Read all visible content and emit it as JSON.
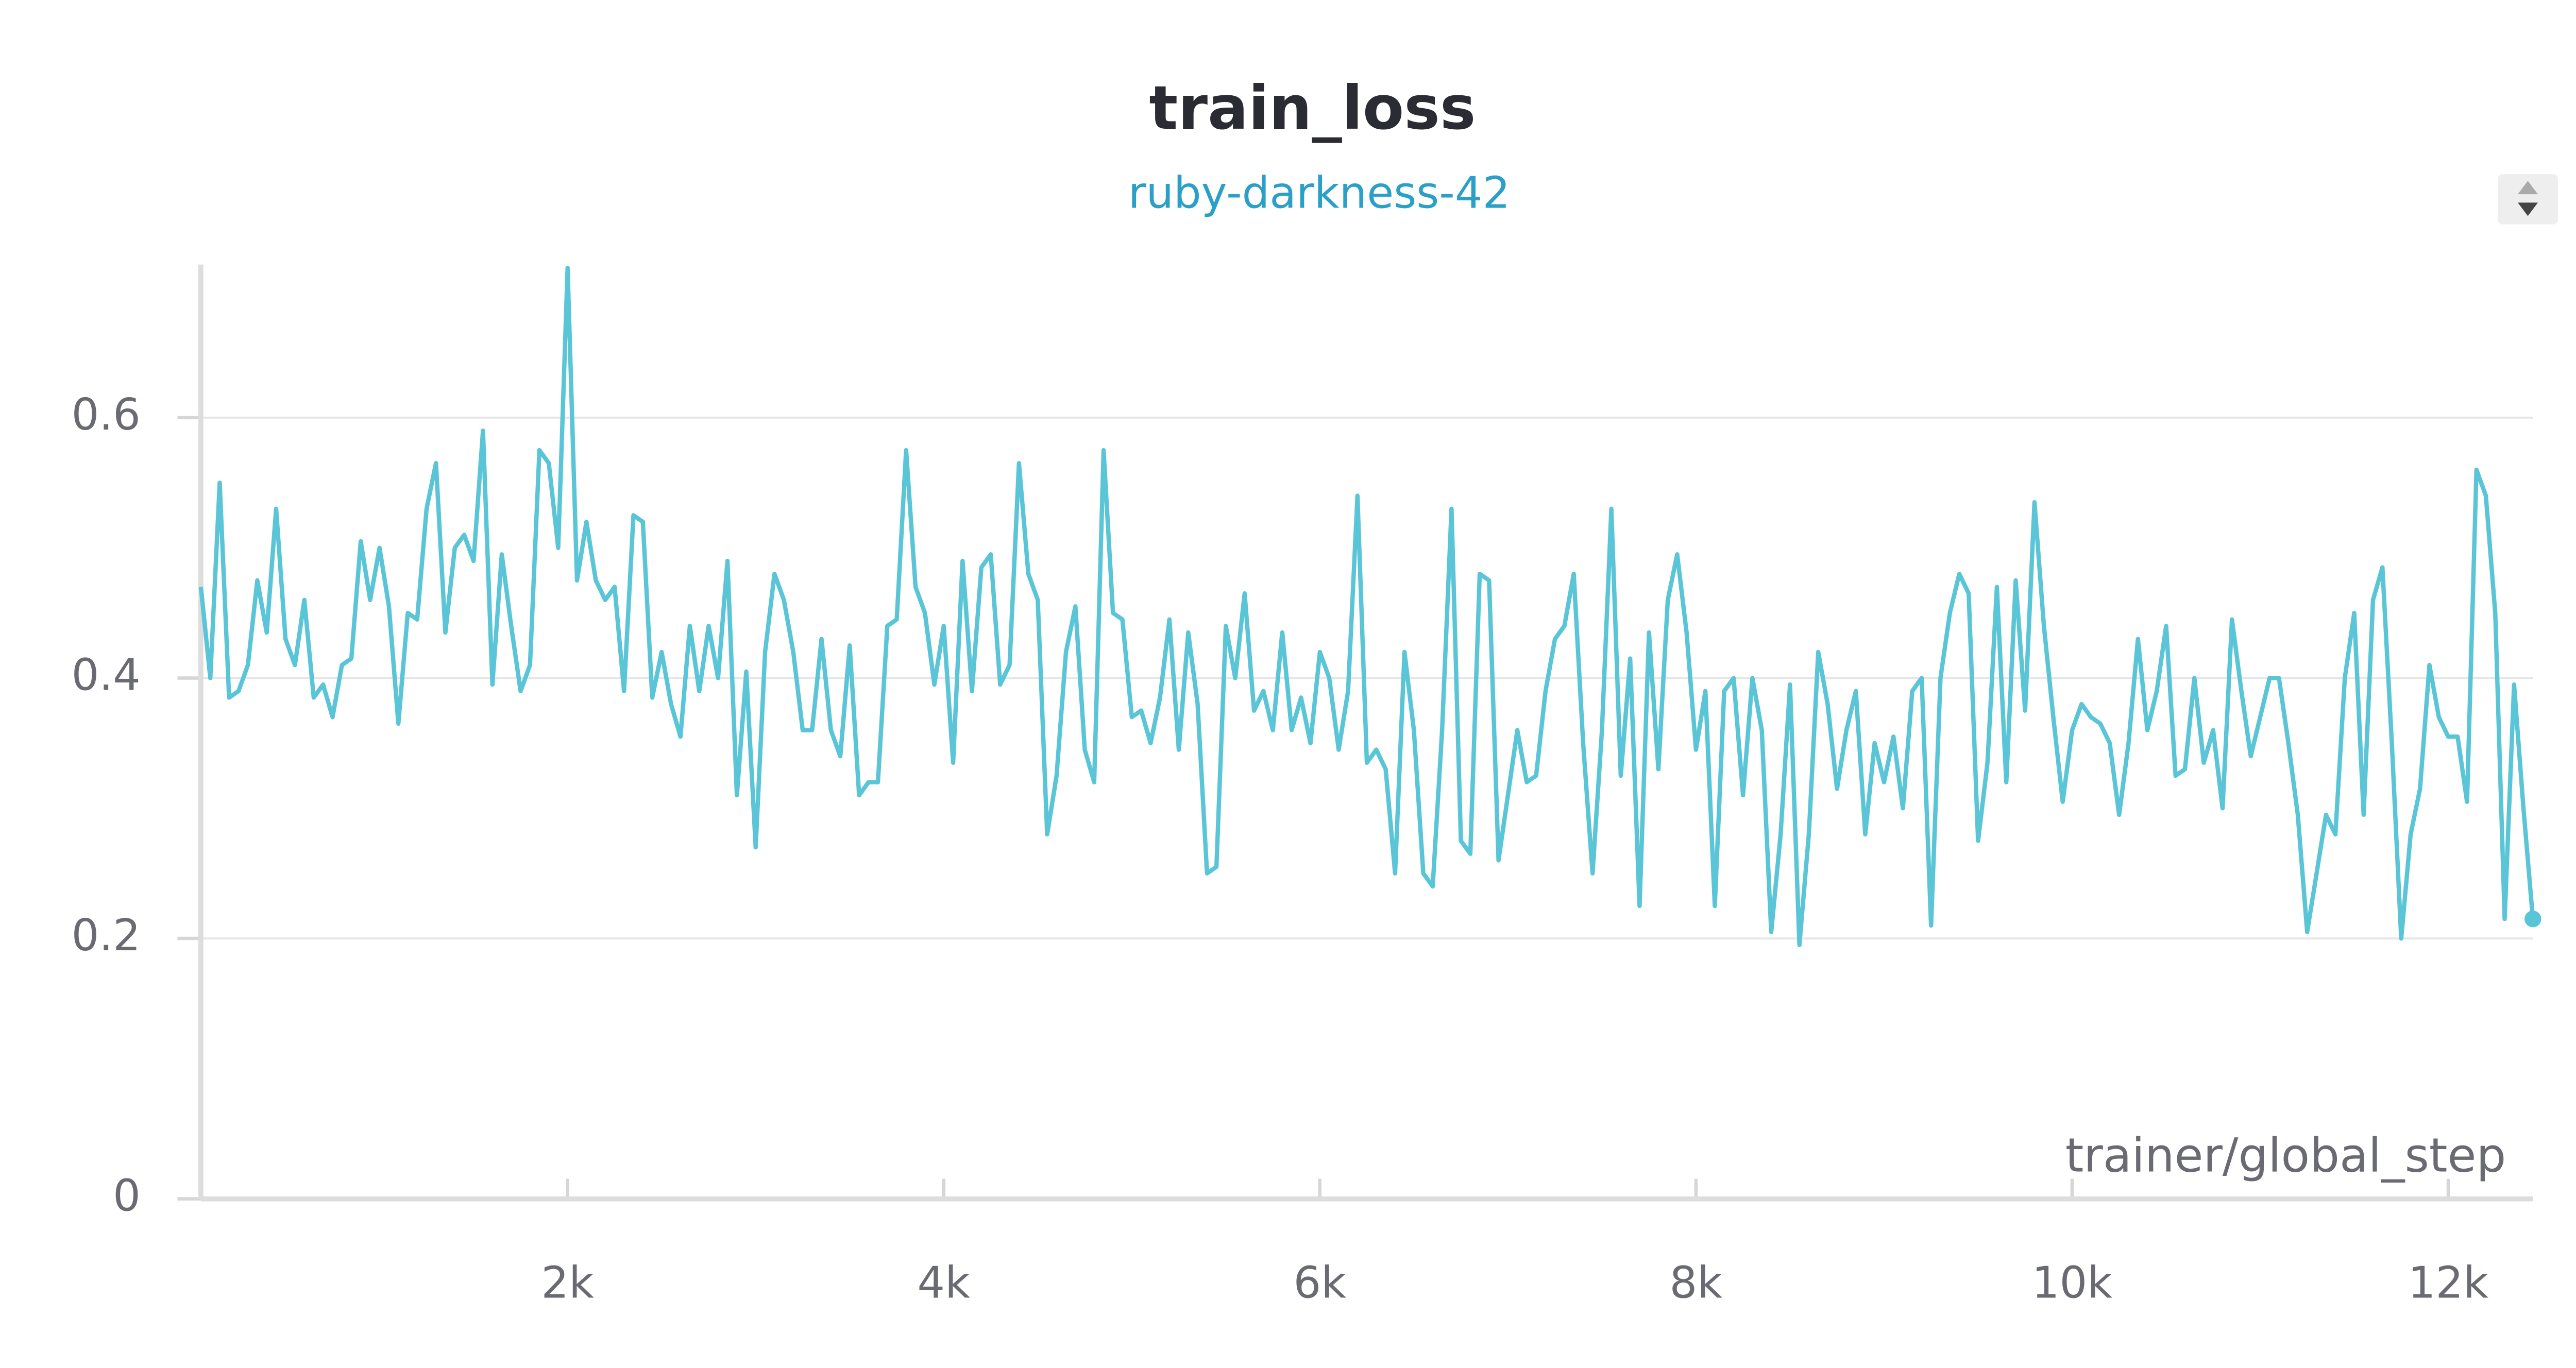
{
  "chart_data": {
    "type": "line",
    "title": "train_loss",
    "subtitle": "ruby-darkness-42",
    "xlabel": "trainer/global_step",
    "xlim": [
      50,
      12450
    ],
    "ylim": [
      0,
      0.715
    ],
    "xticks": [
      {
        "value": 2000,
        "label": "2k"
      },
      {
        "value": 4000,
        "label": "4k"
      },
      {
        "value": 6000,
        "label": "6k"
      },
      {
        "value": 8000,
        "label": "8k"
      },
      {
        "value": 10000,
        "label": "10k"
      },
      {
        "value": 12000,
        "label": "12k"
      }
    ],
    "yticks": [
      0,
      0.2,
      0.4,
      0.6
    ],
    "grid": true,
    "x": [
      50,
      100,
      150,
      200,
      250,
      300,
      350,
      400,
      450,
      500,
      550,
      600,
      650,
      700,
      750,
      800,
      850,
      900,
      950,
      1000,
      1050,
      1100,
      1150,
      1200,
      1250,
      1300,
      1350,
      1400,
      1450,
      1500,
      1550,
      1600,
      1650,
      1700,
      1750,
      1800,
      1850,
      1900,
      1950,
      2000,
      2050,
      2100,
      2150,
      2200,
      2250,
      2300,
      2350,
      2400,
      2450,
      2500,
      2550,
      2600,
      2650,
      2700,
      2750,
      2800,
      2850,
      2900,
      2950,
      3000,
      3050,
      3100,
      3150,
      3200,
      3250,
      3300,
      3350,
      3400,
      3450,
      3500,
      3550,
      3600,
      3650,
      3700,
      3750,
      3800,
      3850,
      3900,
      3950,
      4000,
      4050,
      4100,
      4150,
      4200,
      4250,
      4300,
      4350,
      4400,
      4450,
      4500,
      4550,
      4600,
      4650,
      4700,
      4750,
      4800,
      4850,
      4900,
      4950,
      5000,
      5050,
      5100,
      5150,
      5200,
      5250,
      5300,
      5350,
      5400,
      5450,
      5500,
      5550,
      5600,
      5650,
      5700,
      5750,
      5800,
      5850,
      5900,
      5950,
      6000,
      6050,
      6100,
      6150,
      6200,
      6250,
      6300,
      6350,
      6400,
      6450,
      6500,
      6550,
      6600,
      6650,
      6700,
      6750,
      6800,
      6850,
      6900,
      6950,
      7000,
      7050,
      7100,
      7150,
      7200,
      7250,
      7300,
      7350,
      7400,
      7450,
      7500,
      7550,
      7600,
      7650,
      7700,
      7750,
      7800,
      7850,
      7900,
      7950,
      8000,
      8050,
      8100,
      8150,
      8200,
      8250,
      8300,
      8350,
      8400,
      8450,
      8500,
      8550,
      8600,
      8650,
      8700,
      8750,
      8800,
      8850,
      8900,
      8950,
      9000,
      9050,
      9100,
      9150,
      9200,
      9250,
      9300,
      9350,
      9400,
      9450,
      9500,
      9550,
      9600,
      9650,
      9700,
      9750,
      9800,
      9850,
      9900,
      9950,
      10000,
      10050,
      10100,
      10150,
      10200,
      10250,
      10300,
      10350,
      10400,
      10450,
      10500,
      10550,
      10600,
      10650,
      10700,
      10750,
      10800,
      10850,
      10900,
      10950,
      11000,
      11050,
      11100,
      11150,
      11200,
      11250,
      11300,
      11350,
      11400,
      11450,
      11500,
      11550,
      11600,
      11650,
      11700,
      11750,
      11800,
      11850,
      11900,
      11950,
      12000,
      12050,
      12100,
      12150,
      12200,
      12250,
      12300,
      12350,
      12400,
      12450
    ],
    "series": [
      {
        "name": "ruby-darkness-42",
        "color": "#5bc5d8",
        "values": [
          0.47,
          0.4,
          0.55,
          0.385,
          0.39,
          0.41,
          0.475,
          0.435,
          0.53,
          0.43,
          0.41,
          0.46,
          0.385,
          0.395,
          0.37,
          0.41,
          0.415,
          0.505,
          0.46,
          0.5,
          0.455,
          0.365,
          0.45,
          0.445,
          0.53,
          0.565,
          0.435,
          0.5,
          0.51,
          0.49,
          0.59,
          0.395,
          0.495,
          0.44,
          0.39,
          0.41,
          0.575,
          0.565,
          0.5,
          0.715,
          0.475,
          0.52,
          0.475,
          0.46,
          0.47,
          0.39,
          0.525,
          0.52,
          0.385,
          0.42,
          0.38,
          0.355,
          0.44,
          0.39,
          0.44,
          0.4,
          0.49,
          0.31,
          0.405,
          0.27,
          0.42,
          0.48,
          0.46,
          0.42,
          0.36,
          0.36,
          0.43,
          0.36,
          0.34,
          0.425,
          0.31,
          0.32,
          0.32,
          0.44,
          0.445,
          0.575,
          0.47,
          0.45,
          0.395,
          0.44,
          0.335,
          0.49,
          0.39,
          0.485,
          0.495,
          0.395,
          0.41,
          0.565,
          0.48,
          0.46,
          0.28,
          0.325,
          0.42,
          0.455,
          0.345,
          0.32,
          0.575,
          0.45,
          0.445,
          0.37,
          0.375,
          0.35,
          0.385,
          0.445,
          0.345,
          0.435,
          0.38,
          0.25,
          0.255,
          0.44,
          0.4,
          0.465,
          0.375,
          0.39,
          0.36,
          0.435,
          0.36,
          0.385,
          0.35,
          0.42,
          0.4,
          0.345,
          0.39,
          0.54,
          0.335,
          0.345,
          0.33,
          0.25,
          0.42,
          0.36,
          0.25,
          0.24,
          0.36,
          0.53,
          0.275,
          0.265,
          0.48,
          0.475,
          0.26,
          0.31,
          0.36,
          0.32,
          0.325,
          0.39,
          0.43,
          0.44,
          0.48,
          0.35,
          0.25,
          0.36,
          0.53,
          0.325,
          0.415,
          0.225,
          0.435,
          0.33,
          0.46,
          0.495,
          0.435,
          0.345,
          0.39,
          0.225,
          0.39,
          0.4,
          0.31,
          0.4,
          0.36,
          0.205,
          0.28,
          0.395,
          0.195,
          0.28,
          0.42,
          0.38,
          0.315,
          0.36,
          0.39,
          0.28,
          0.35,
          0.32,
          0.355,
          0.3,
          0.39,
          0.4,
          0.21,
          0.4,
          0.45,
          0.48,
          0.465,
          0.275,
          0.335,
          0.47,
          0.32,
          0.475,
          0.375,
          0.535,
          0.44,
          0.37,
          0.305,
          0.36,
          0.38,
          0.37,
          0.365,
          0.35,
          0.295,
          0.35,
          0.43,
          0.36,
          0.39,
          0.44,
          0.325,
          0.33,
          0.4,
          0.335,
          0.36,
          0.3,
          0.445,
          0.39,
          0.34,
          0.37,
          0.4,
          0.4,
          0.35,
          0.295,
          0.205,
          0.25,
          0.295,
          0.28,
          0.4,
          0.45,
          0.295,
          0.46,
          0.485,
          0.35,
          0.2,
          0.28,
          0.315,
          0.41,
          0.37,
          0.355,
          0.355,
          0.305,
          0.56,
          0.54,
          0.45,
          0.215,
          0.395,
          0.3,
          0.215
        ]
      }
    ]
  }
}
